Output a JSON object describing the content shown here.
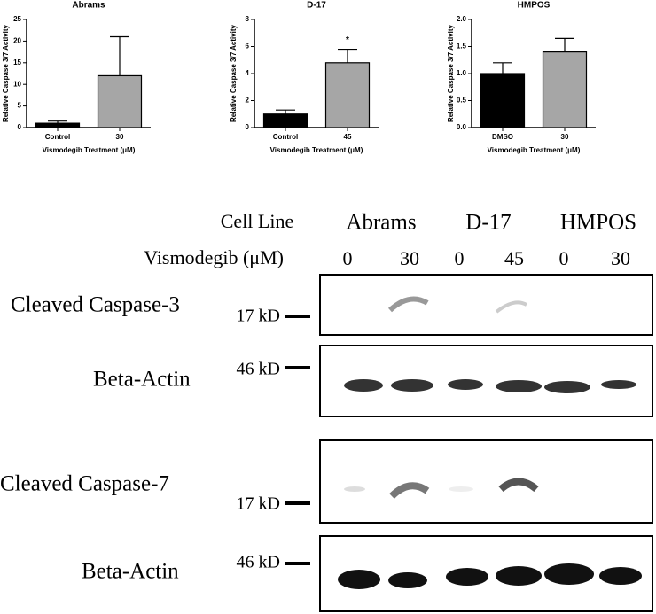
{
  "chart_data": [
    {
      "type": "bar",
      "title": "Abrams",
      "ylabel": "Relative Caspase 3/7 Activity",
      "xlabel": "Vismodegib Treatment (μM)",
      "categories": [
        "Control",
        "30"
      ],
      "values": [
        1,
        12
      ],
      "errors": [
        0.5,
        9
      ],
      "colors": [
        "#000000",
        "#a6a6a6"
      ],
      "ylim": [
        0,
        25
      ],
      "yticks": [
        0,
        5,
        10,
        15,
        20,
        25
      ]
    },
    {
      "type": "bar",
      "title": "D-17",
      "ylabel": "Relative Caspase 3/7 Activity",
      "xlabel": "Vismodegib Treatment (μM)",
      "categories": [
        "Control",
        "45"
      ],
      "values": [
        1,
        4.8
      ],
      "errors": [
        0.3,
        1
      ],
      "colors": [
        "#000000",
        "#a6a6a6"
      ],
      "annotation": "*",
      "ylim": [
        0,
        8
      ],
      "yticks": [
        0,
        2,
        4,
        6,
        8
      ]
    },
    {
      "type": "bar",
      "title": "HMPOS",
      "ylabel": "Relative Caspase 3/7 Activity",
      "xlabel": "Vismodegib Treatment (μM)",
      "categories": [
        "DMSO",
        "30"
      ],
      "values": [
        1,
        1.4
      ],
      "errors": [
        0.2,
        0.25
      ],
      "colors": [
        "#000000",
        "#a6a6a6"
      ],
      "ylim": [
        0,
        2
      ],
      "yticks": [
        {
          "value": 0,
          "label": "0.0"
        },
        {
          "value": 0.5,
          "label": "0.5"
        },
        {
          "value": 1,
          "label": "1.0"
        },
        {
          "value": 1.5,
          "label": "1.5"
        },
        {
          "value": 2,
          "label": "2.0"
        }
      ]
    }
  ],
  "blot": {
    "header_label": "Cell Line",
    "cell_lines": [
      "Abrams",
      "D-17",
      "HMPOS"
    ],
    "treatment_label": "Vismodegib (μM)",
    "doses": [
      "0",
      "30",
      "0",
      "45",
      "0",
      "30"
    ],
    "panels": [
      {
        "label": "Cleaved Caspase-3",
        "marker": "17 kD"
      },
      {
        "label": "Beta-Actin",
        "marker": "46 kD"
      },
      {
        "label": "Cleaved Caspase-7",
        "marker": "17 kD"
      },
      {
        "label": "Beta-Actin",
        "marker": "46 kD"
      }
    ]
  }
}
